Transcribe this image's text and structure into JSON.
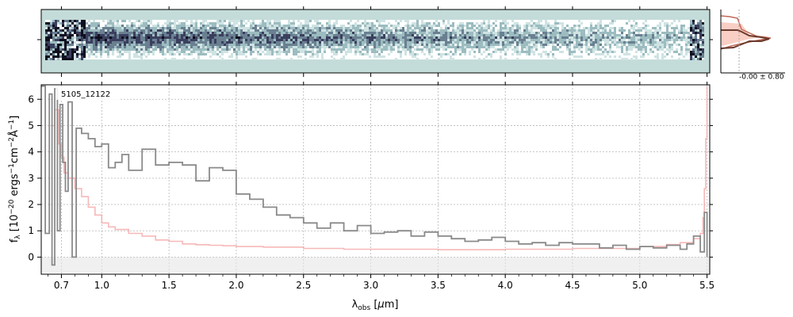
{
  "chart_data": {
    "type": "line",
    "object_label": "5105_12122",
    "xlabel": "λ_obs [μm]",
    "ylabel": "f_λ [10^-20 ergs^-1 cm^-2 Å^-1]",
    "xlim": [
      0.55,
      5.52
    ],
    "ylim": [
      -0.65,
      6.55
    ],
    "x_ticks": [
      {
        "v": 0.7,
        "label": "0.7"
      },
      {
        "v": 1.0,
        "label": "1.0"
      },
      {
        "v": 1.5,
        "label": "1.5"
      },
      {
        "v": 2.0,
        "label": "2.0"
      },
      {
        "v": 2.5,
        "label": "2.5"
      },
      {
        "v": 3.0,
        "label": "3.0"
      },
      {
        "v": 3.5,
        "label": "3.5"
      },
      {
        "v": 4.0,
        "label": "4.0"
      },
      {
        "v": 4.5,
        "label": "4.5"
      },
      {
        "v": 5.0,
        "label": "5.0"
      },
      {
        "v": 5.5,
        "label": "5.5"
      }
    ],
    "y_ticks": [
      0,
      1,
      2,
      3,
      4,
      5,
      6
    ],
    "grid": true,
    "series": [
      {
        "role": "flux",
        "color": "#8a8a8a",
        "x": [
          0.55,
          0.58,
          0.61,
          0.63,
          0.65,
          0.67,
          0.69,
          0.71,
          0.73,
          0.75,
          0.78,
          0.81,
          0.85,
          0.9,
          0.95,
          1.0,
          1.05,
          1.1,
          1.15,
          1.2,
          1.3,
          1.4,
          1.5,
          1.6,
          1.7,
          1.8,
          1.9,
          2.0,
          2.1,
          2.2,
          2.3,
          2.4,
          2.5,
          2.6,
          2.7,
          2.8,
          2.9,
          3.0,
          3.1,
          3.2,
          3.3,
          3.4,
          3.5,
          3.6,
          3.7,
          3.8,
          3.9,
          4.0,
          4.1,
          4.2,
          4.3,
          4.4,
          4.5,
          4.6,
          4.7,
          4.8,
          4.9,
          5.0,
          5.1,
          5.2,
          5.3,
          5.35,
          5.4,
          5.45,
          5.48,
          5.5
        ],
        "y": [
          6.5,
          0.9,
          6.2,
          -0.3,
          6.4,
          1.0,
          5.8,
          3.6,
          2.5,
          5.9,
          0.0,
          4.9,
          4.7,
          4.5,
          4.2,
          4.3,
          3.4,
          3.6,
          3.9,
          3.3,
          4.1,
          3.5,
          3.6,
          3.5,
          2.9,
          3.4,
          3.3,
          2.4,
          2.2,
          1.9,
          1.6,
          1.5,
          1.3,
          1.1,
          1.3,
          1.0,
          1.2,
          0.9,
          0.95,
          1.0,
          0.8,
          0.95,
          0.8,
          0.7,
          0.6,
          0.65,
          0.75,
          0.6,
          0.5,
          0.55,
          0.45,
          0.55,
          0.5,
          0.5,
          0.35,
          0.45,
          0.3,
          0.4,
          0.35,
          0.45,
          0.3,
          0.5,
          0.8,
          0.2,
          1.7,
          0.0
        ]
      },
      {
        "role": "uncertainty",
        "color": "#f4a0a0",
        "x": [
          0.62,
          0.65,
          0.68,
          0.7,
          0.72,
          0.75,
          0.8,
          0.85,
          0.9,
          0.95,
          1.0,
          1.05,
          1.1,
          1.2,
          1.3,
          1.4,
          1.5,
          1.6,
          1.7,
          1.8,
          1.9,
          2.0,
          2.2,
          2.5,
          2.8,
          3.0,
          3.5,
          4.0,
          4.5,
          5.0,
          5.2,
          5.3,
          5.4,
          5.45,
          5.47,
          5.48,
          5.49,
          5.5
        ],
        "y": [
          5.0,
          5.6,
          4.3,
          3.8,
          3.2,
          3.0,
          2.6,
          2.3,
          1.9,
          1.6,
          1.3,
          1.15,
          1.05,
          0.9,
          0.8,
          0.65,
          0.6,
          0.5,
          0.47,
          0.45,
          0.43,
          0.4,
          0.38,
          0.33,
          0.3,
          0.3,
          0.28,
          0.3,
          0.33,
          0.4,
          0.48,
          0.55,
          0.7,
          0.9,
          1.5,
          2.6,
          4.5,
          6.5
        ]
      }
    ],
    "spectrum_2d": {
      "colormap": "cubehelix-like",
      "background": "#c4dcd9"
    },
    "profile": {
      "annotation": "-0.00 ± 0.80",
      "fill_color": "#f7c2b5",
      "line_color": "#6b3a2c"
    }
  }
}
